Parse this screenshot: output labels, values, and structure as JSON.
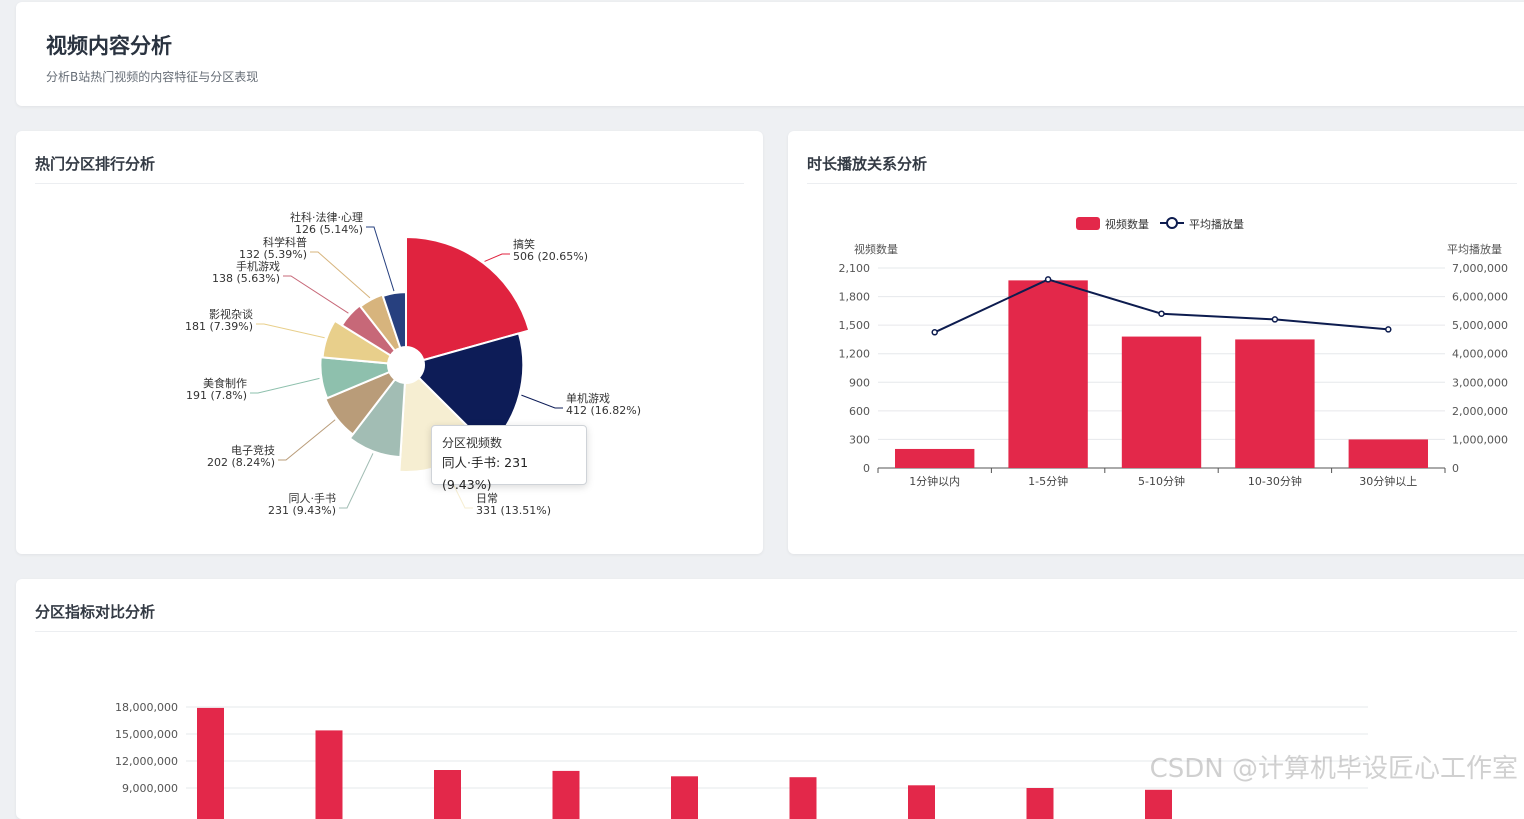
{
  "header": {
    "title": "视频内容分析",
    "subtitle": "分析B站热门视频的内容特征与分区表现"
  },
  "pie_card": {
    "title": "热门分区排行分析",
    "tooltip": {
      "title": "分区视频数",
      "body": "同人·手书: 231 (9.43%)"
    }
  },
  "bar_card": {
    "title": "时长播放关系分析"
  },
  "cmp_card": {
    "title": "分区指标对比分析"
  },
  "watermark": "CSDN @计算机毕设匠心工作室",
  "chart_data": [
    {
      "type": "pie",
      "series": [
        {
          "name": "搞笑",
          "value": 506,
          "label": "506 (20.65%)",
          "color": "#e0233f"
        },
        {
          "name": "单机游戏",
          "value": 412,
          "label": "412 (16.82%)",
          "color": "#0d1c57"
        },
        {
          "name": "日常",
          "value": 331,
          "label": "331 (13.51%)",
          "color": "#f6eed2"
        },
        {
          "name": "同人·手书",
          "value": 231,
          "label": "231 (9.43%)",
          "color": "#a2bdb4"
        },
        {
          "name": "电子竞技",
          "value": 202,
          "label": "202 (8.24%)",
          "color": "#b99c79"
        },
        {
          "name": "美食制作",
          "value": 191,
          "label": "191 (7.8%)",
          "color": "#8ec0ad"
        },
        {
          "name": "影视杂谈",
          "value": 181,
          "label": "181 (7.39%)",
          "color": "#e8cf8b"
        },
        {
          "name": "手机游戏",
          "value": 138,
          "label": "138 (5.63%)",
          "color": "#c76878"
        },
        {
          "name": "科学科普",
          "value": 132,
          "label": "132 (5.39%)",
          "color": "#d7b47d"
        },
        {
          "name": "社科·法律·心理",
          "value": 126,
          "label": "126 (5.14%)",
          "color": "#27407f"
        }
      ]
    },
    {
      "type": "bar",
      "categories": [
        "1分钟以内",
        "1-5分钟",
        "5-10分钟",
        "10-30分钟",
        "30分钟以上"
      ],
      "series": [
        {
          "name": "视频数量",
          "type": "bar",
          "values": [
            200,
            1970,
            1380,
            1350,
            300
          ],
          "color": "#e3284a"
        },
        {
          "name": "平均播放量",
          "type": "line",
          "axis": "right",
          "values": [
            4750000,
            6600000,
            5400000,
            5200000,
            4850000
          ],
          "color": "#0d1c4f"
        }
      ],
      "ylabel_left": "视频数量",
      "ylabel_right": "平均播放量",
      "ylim_left": [
        0,
        2100
      ],
      "ylim_right": [
        0,
        7000000
      ],
      "yticks_left": [
        "0",
        "300",
        "600",
        "900",
        "1,200",
        "1,500",
        "1,800",
        "2,100"
      ],
      "yticks_right": [
        "0",
        "1,000,000",
        "2,000,000",
        "3,000,000",
        "4,000,000",
        "5,000,000",
        "6,000,000",
        "7,000,000"
      ],
      "legend": "top-center"
    },
    {
      "type": "bar",
      "values": [
        17900000,
        15400000,
        11000000,
        10900000,
        10300000,
        10200000,
        9300000,
        9000000,
        8800000
      ],
      "yticks": [
        "9,000,000",
        "12,000,000",
        "15,000,000",
        "18,000,000"
      ],
      "color": "#e3284a"
    }
  ]
}
